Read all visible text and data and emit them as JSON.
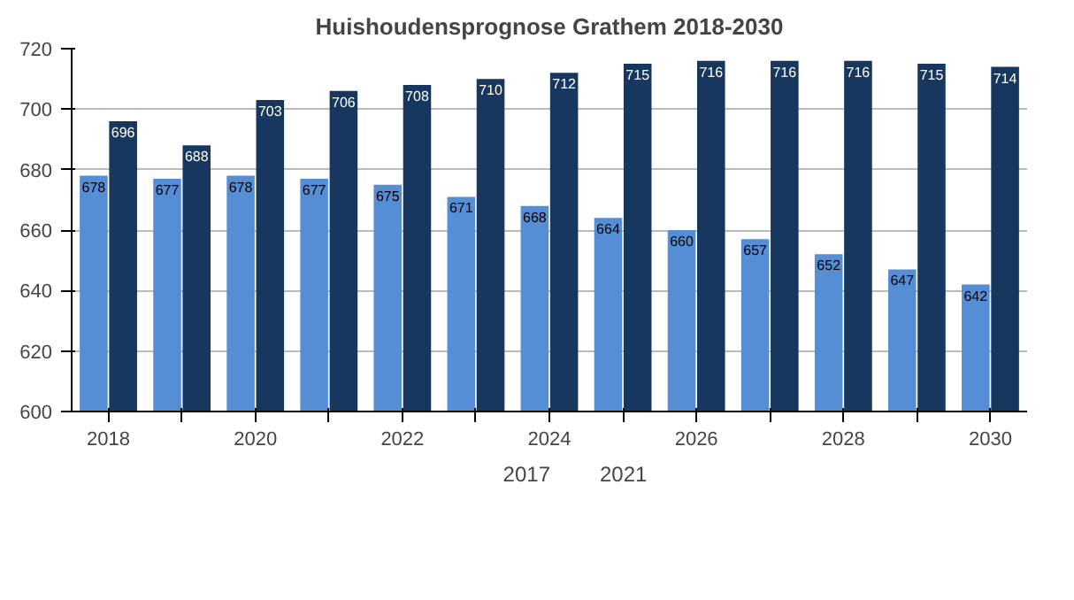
{
  "chart_data": {
    "type": "bar",
    "title": "Huishoudensprognose Grathem 2018-2030",
    "categories": [
      "2018",
      null,
      "2020",
      null,
      "2022",
      null,
      "2024",
      null,
      "2026",
      null,
      "2028",
      null,
      "2030"
    ],
    "series": [
      {
        "name": "2017",
        "color": "#558ed5",
        "values": [
          678,
          677,
          678,
          677,
          675,
          671,
          668,
          664,
          660,
          657,
          652,
          647,
          642
        ]
      },
      {
        "name": "2021",
        "color": "#17375e",
        "values": [
          696,
          688,
          703,
          706,
          708,
          710,
          712,
          715,
          716,
          716,
          716,
          715,
          714
        ]
      }
    ],
    "ylim": [
      600,
      720
    ],
    "yticks": [
      600,
      620,
      640,
      660,
      680,
      700,
      720
    ],
    "grid": "y",
    "legend": "bottom",
    "data_labels": true
  }
}
